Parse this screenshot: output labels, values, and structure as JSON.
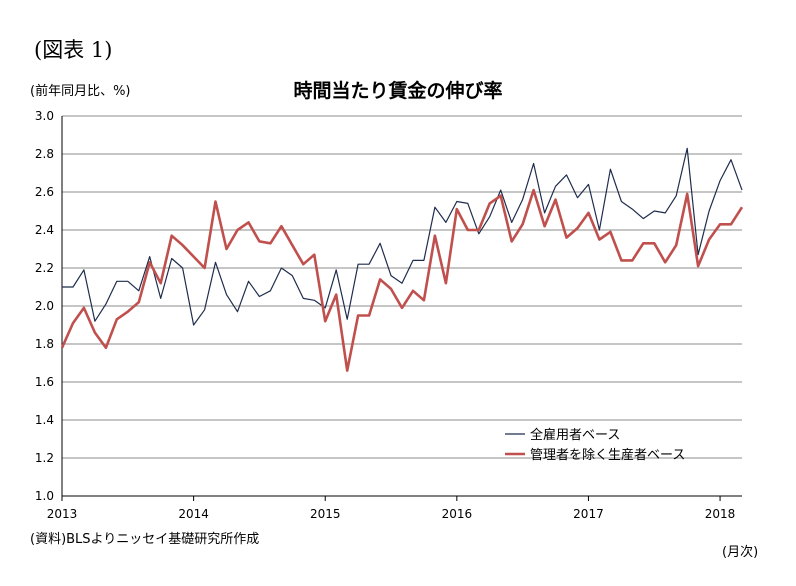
{
  "figure_label": "(図表 1)",
  "unit_label": "(前年同月比、%)",
  "source_note": "(資料)BLSよりニッセイ基礎研究所作成",
  "x_unit_label": "(月次)",
  "chart_data": {
    "type": "line",
    "title": "時間当たり賃金の伸び率",
    "x": [
      "2013-01",
      "2013-02",
      "2013-03",
      "2013-04",
      "2013-05",
      "2013-06",
      "2013-07",
      "2013-08",
      "2013-09",
      "2013-10",
      "2013-11",
      "2013-12",
      "2014-01",
      "2014-02",
      "2014-03",
      "2014-04",
      "2014-05",
      "2014-06",
      "2014-07",
      "2014-08",
      "2014-09",
      "2014-10",
      "2014-11",
      "2014-12",
      "2015-01",
      "2015-02",
      "2015-03",
      "2015-04",
      "2015-05",
      "2015-06",
      "2015-07",
      "2015-08",
      "2015-09",
      "2015-10",
      "2015-11",
      "2015-12",
      "2016-01",
      "2016-02",
      "2016-03",
      "2016-04",
      "2016-05",
      "2016-06",
      "2016-07",
      "2016-08",
      "2016-09",
      "2016-10",
      "2016-11",
      "2016-12",
      "2017-01",
      "2017-02",
      "2017-03",
      "2017-04",
      "2017-05",
      "2017-06",
      "2017-07",
      "2017-08",
      "2017-09",
      "2017-10",
      "2017-11",
      "2017-12",
      "2018-01",
      "2018-02",
      "2018-03"
    ],
    "x_tick_labels": [
      "2013",
      "2014",
      "2015",
      "2016",
      "2017",
      "2018"
    ],
    "y_tick_labels": [
      "1.0",
      "1.2",
      "1.4",
      "1.6",
      "1.8",
      "2.0",
      "2.2",
      "2.4",
      "2.6",
      "2.8",
      "3.0"
    ],
    "ylim": [
      1.0,
      3.0
    ],
    "grid": true,
    "legend_position": "bottom-right",
    "series": [
      {
        "name": "全雇用者ベース",
        "color": "#1f2d4d",
        "values": [
          2.1,
          2.1,
          2.19,
          1.92,
          2.01,
          2.13,
          2.13,
          2.08,
          2.26,
          2.04,
          2.25,
          2.2,
          1.9,
          1.98,
          2.23,
          2.06,
          1.97,
          2.13,
          2.05,
          2.08,
          2.2,
          2.16,
          2.04,
          2.03,
          1.99,
          2.19,
          1.93,
          2.22,
          2.22,
          2.33,
          2.16,
          2.12,
          2.24,
          2.24,
          2.52,
          2.44,
          2.55,
          2.54,
          2.38,
          2.47,
          2.61,
          2.44,
          2.56,
          2.75,
          2.49,
          2.63,
          2.69,
          2.57,
          2.64,
          2.4,
          2.72,
          2.55,
          2.51,
          2.46,
          2.5,
          2.49,
          2.58,
          2.83,
          2.27,
          2.5,
          2.66,
          2.77,
          2.61
        ]
      },
      {
        "name": "管理者を除く生産者ベース",
        "color": "#c0504d",
        "values": [
          1.78,
          1.91,
          1.99,
          1.86,
          1.78,
          1.93,
          1.97,
          2.02,
          2.23,
          2.12,
          2.37,
          2.32,
          2.26,
          2.2,
          2.55,
          2.3,
          2.4,
          2.44,
          2.34,
          2.33,
          2.42,
          2.32,
          2.22,
          2.27,
          1.92,
          2.06,
          1.66,
          1.95,
          1.95,
          2.14,
          2.09,
          1.99,
          2.08,
          2.03,
          2.37,
          2.12,
          2.51,
          2.4,
          2.4,
          2.54,
          2.58,
          2.34,
          2.43,
          2.61,
          2.42,
          2.56,
          2.36,
          2.41,
          2.49,
          2.35,
          2.39,
          2.24,
          2.24,
          2.33,
          2.33,
          2.23,
          2.32,
          2.59,
          2.21,
          2.35,
          2.43,
          2.43,
          2.52
        ]
      }
    ]
  }
}
